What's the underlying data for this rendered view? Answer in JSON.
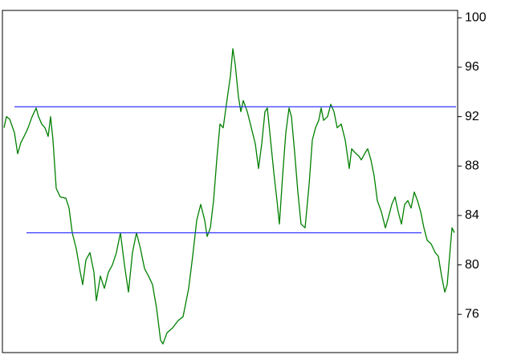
{
  "chart_data": {
    "type": "line",
    "xlim": [
      3,
      570
    ],
    "ylim": [
      72.9,
      100.6
    ],
    "yticks": [
      76,
      80,
      84,
      88,
      92,
      96,
      100
    ],
    "axis_side": "right",
    "series": [
      {
        "color": "#008000",
        "x": [
          5,
          8,
          12,
          18,
          22,
          26,
          30,
          35,
          40,
          45,
          48,
          52,
          56,
          60,
          63,
          66,
          70,
          75,
          82,
          86,
          90,
          95,
          100,
          103,
          107,
          112,
          117,
          120,
          125,
          130,
          135,
          140,
          145,
          150,
          155,
          160,
          165,
          170,
          175,
          180,
          185,
          190,
          195,
          200,
          203,
          208,
          215,
          222,
          228,
          235,
          240,
          245,
          250,
          255,
          258,
          262,
          266,
          270,
          274,
          278,
          282,
          287,
          290,
          293,
          297,
          300,
          303,
          308,
          313,
          318,
          322,
          326,
          330,
          333,
          337,
          341,
          345,
          348,
          352,
          356,
          360,
          363,
          367,
          371,
          375,
          380,
          385,
          389,
          393,
          397,
          400,
          403,
          408,
          412,
          416,
          420,
          425,
          430,
          435,
          438,
          442,
          447,
          450,
          455,
          458,
          462,
          466,
          470,
          475,
          480,
          484,
          488,
          492,
          496,
          500,
          504,
          508,
          512,
          516,
          520,
          524,
          528,
          532,
          537,
          542,
          546,
          550,
          554,
          557,
          560,
          563,
          566
        ],
        "values": [
          91.1,
          92.0,
          91.8,
          90.7,
          89.0,
          89.9,
          90.4,
          91.1,
          92.0,
          92.7,
          92.0,
          91.4,
          91.1,
          90.4,
          92.0,
          90.1,
          86.2,
          85.5,
          85.4,
          84.6,
          82.6,
          81.3,
          79.4,
          78.4,
          80.4,
          81.0,
          79.4,
          77.1,
          79.1,
          78.1,
          79.4,
          80.0,
          81.0,
          82.6,
          80.0,
          77.8,
          81.0,
          82.6,
          81.3,
          79.7,
          79.1,
          78.4,
          76.5,
          73.9,
          73.6,
          74.5,
          74.9,
          75.5,
          75.8,
          78.1,
          80.7,
          83.6,
          84.9,
          83.6,
          82.3,
          83.0,
          85.2,
          88.5,
          91.4,
          91.1,
          93.0,
          95.3,
          97.5,
          96.2,
          93.6,
          92.4,
          93.3,
          92.4,
          91.1,
          89.8,
          87.8,
          89.8,
          92.4,
          92.7,
          90.1,
          87.5,
          85.2,
          83.3,
          87.2,
          90.7,
          92.7,
          92.0,
          89.1,
          85.9,
          83.3,
          83.0,
          86.5,
          90.1,
          91.1,
          91.7,
          92.7,
          91.7,
          92.0,
          93.0,
          92.4,
          91.1,
          91.4,
          90.1,
          87.8,
          89.4,
          89.1,
          88.8,
          88.5,
          89.1,
          89.4,
          88.5,
          87.2,
          85.2,
          84.3,
          83.0,
          83.9,
          84.9,
          85.5,
          84.3,
          83.3,
          84.9,
          85.2,
          84.6,
          85.9,
          85.2,
          84.3,
          83.0,
          82.0,
          81.7,
          81.0,
          80.7,
          79.1,
          77.8,
          78.4,
          80.7,
          83.0,
          82.6
        ]
      },
      {
        "color": "#3333ff",
        "x": [
          18,
          568
        ],
        "values": [
          92.8,
          92.8
        ]
      },
      {
        "color": "#3333ff",
        "x": [
          33,
          525
        ],
        "values": [
          82.6,
          82.6
        ]
      }
    ]
  }
}
